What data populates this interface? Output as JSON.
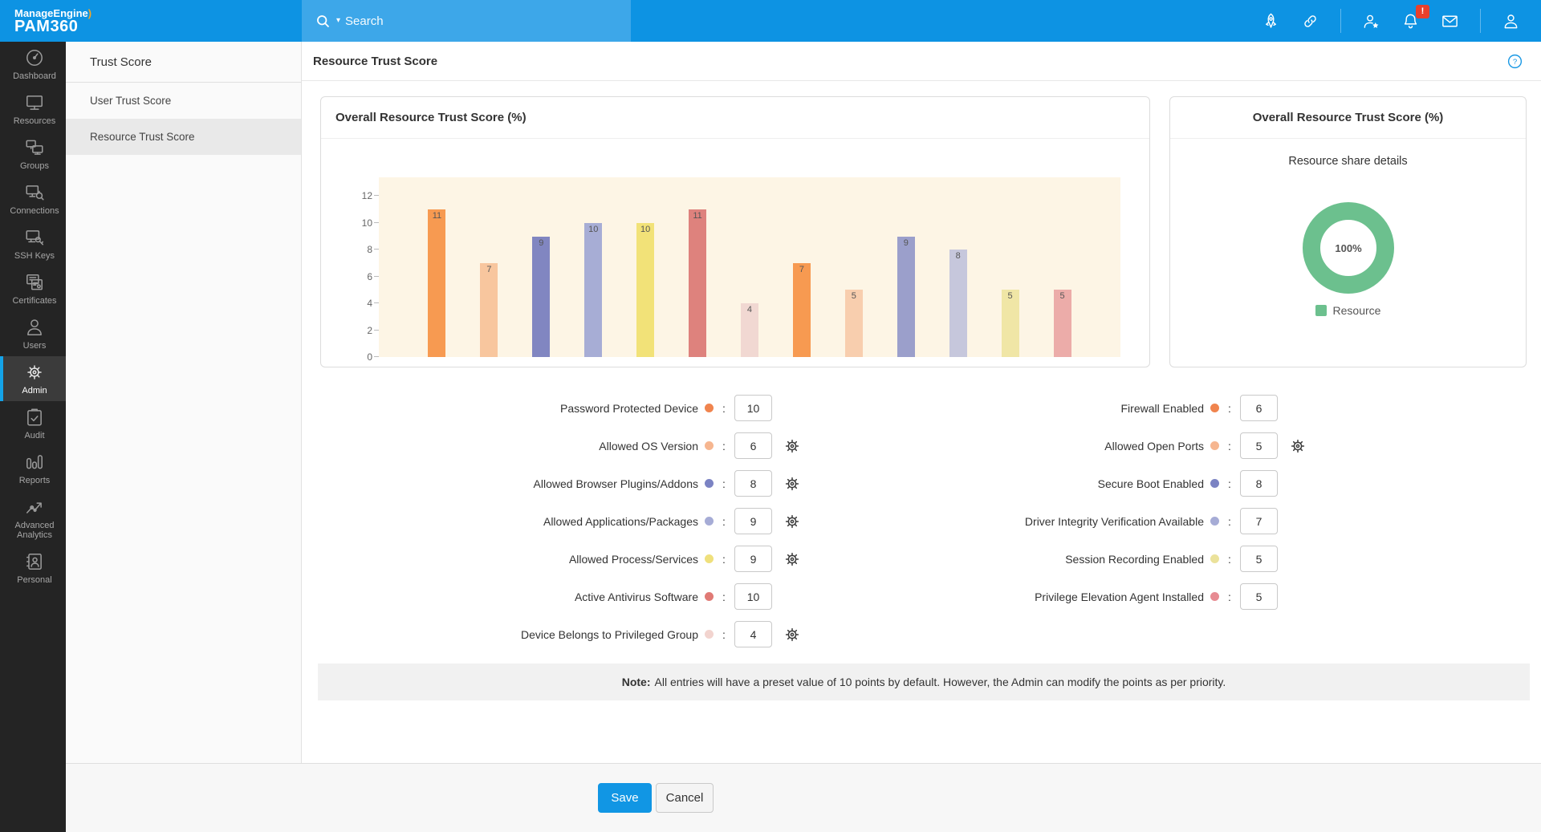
{
  "topbar": {
    "brand_line1": "ManageEngine",
    "brand_swoosh": ")",
    "brand_line2": "PAM360",
    "search_placeholder": "Search",
    "bell_badge": "!",
    "icons": [
      "rocket-icon",
      "link-icon",
      "user-star-icon",
      "notification-bell-icon",
      "mail-icon",
      "account-user-icon"
    ]
  },
  "rail": {
    "items": [
      {
        "label": "Dashboard",
        "icon": "dashboard",
        "active": false
      },
      {
        "label": "Resources",
        "icon": "resources",
        "active": false
      },
      {
        "label": "Groups",
        "icon": "groups",
        "active": false
      },
      {
        "label": "Connections",
        "icon": "connections",
        "active": false
      },
      {
        "label": "SSH Keys",
        "icon": "ssh-keys",
        "active": false
      },
      {
        "label": "Certificates",
        "icon": "certificates",
        "active": false
      },
      {
        "label": "Users",
        "icon": "users",
        "active": false
      },
      {
        "label": "Admin",
        "icon": "admin-gear",
        "active": true
      },
      {
        "label": "Audit",
        "icon": "audit",
        "active": false
      },
      {
        "label": "Reports",
        "icon": "reports",
        "active": false
      },
      {
        "label": "Advanced Analytics",
        "icon": "advanced-analytics",
        "active": false
      },
      {
        "label": "Personal",
        "icon": "personal",
        "active": false
      }
    ]
  },
  "sidebar": {
    "title": "Trust Score",
    "items": [
      {
        "label": "User Trust Score",
        "active": false
      },
      {
        "label": "Resource Trust Score",
        "active": true
      }
    ]
  },
  "page": {
    "title": "Resource Trust Score"
  },
  "chart_data": [
    {
      "type": "bar",
      "title": "Overall Resource Trust Score (%)",
      "categories": [
        "Password Protected Device",
        "Allowed OS Version",
        "Allowed Browser Plugins/Addons",
        "Allowed Applications/Packages",
        "Allowed Process/Services",
        "Active Antivirus Software",
        "Device Belongs to Privileged Group",
        "Firewall Enabled",
        "Allowed Open Ports",
        "Secure Boot Enabled",
        "Driver Integrity Verification Available",
        "Session Recording Enabled",
        "Privilege Elevation Agent Installed"
      ],
      "values": [
        11,
        7,
        9,
        10,
        10,
        11,
        4,
        7,
        5,
        9,
        8,
        5,
        5
      ],
      "bar_colors": [
        "#F79A51",
        "#F8C69E",
        "#8186C1",
        "#A7ADD5",
        "#F2E278",
        "#DE827D",
        "#F1D8D2",
        "#F79A51",
        "#F8CEAE",
        "#9B9FCB",
        "#C6C7DC",
        "#F0E6A6",
        "#ECACA9"
      ],
      "yticks": [
        0,
        2,
        4,
        6,
        8,
        10,
        12
      ],
      "ylim": [
        0,
        13.4
      ],
      "grid": false,
      "x_axis_labels_shown": false,
      "plot_bg": "#FDF5E5"
    },
    {
      "type": "pie",
      "title": "Overall Resource Trust Score (%)",
      "subtitle": "Resource share details",
      "center_label": "100%",
      "slices": [
        {
          "label": "Resource",
          "value": 100,
          "color": "#6CC08E"
        }
      ],
      "legend_position": "bottom"
    }
  ],
  "form": {
    "left": [
      {
        "label": "Password Protected Device",
        "value": "10",
        "gear": false,
        "dot": "#F0844E"
      },
      {
        "label": "Allowed OS Version",
        "value": "6",
        "gear": true,
        "dot": "#F6B690"
      },
      {
        "label": "Allowed Browser Plugins/Addons",
        "value": "8",
        "gear": true,
        "dot": "#7B83C3"
      },
      {
        "label": "Allowed Applications/Packages",
        "value": "9",
        "gear": true,
        "dot": "#A6ACD6"
      },
      {
        "label": "Allowed Process/Services",
        "value": "9",
        "gear": true,
        "dot": "#EFE07C"
      },
      {
        "label": "Active Antivirus Software",
        "value": "10",
        "gear": false,
        "dot": "#E07A75"
      },
      {
        "label": "Device Belongs to Privileged Group",
        "value": "4",
        "gear": true,
        "dot": "#F2D4CF"
      }
    ],
    "right": [
      {
        "label": "Firewall Enabled",
        "value": "6",
        "gear": false,
        "dot": "#F0844E"
      },
      {
        "label": "Allowed Open Ports",
        "value": "5",
        "gear": true,
        "dot": "#F6B690"
      },
      {
        "label": "Secure Boot Enabled",
        "value": "8",
        "gear": false,
        "dot": "#7B83C3"
      },
      {
        "label": "Driver Integrity Verification Available",
        "value": "7",
        "gear": false,
        "dot": "#A6ACD6"
      },
      {
        "label": "Session Recording Enabled",
        "value": "5",
        "gear": false,
        "dot": "#EBE29B"
      },
      {
        "label": "Privilege Elevation Agent Installed",
        "value": "5",
        "gear": false,
        "dot": "#E78B92"
      }
    ]
  },
  "note": {
    "label_bold": "Note:",
    "text": " All entries will have a preset value of 10 points by default. However, the Admin can modify the points as per priority."
  },
  "footer": {
    "save_label": "Save",
    "cancel_label": "Cancel"
  }
}
